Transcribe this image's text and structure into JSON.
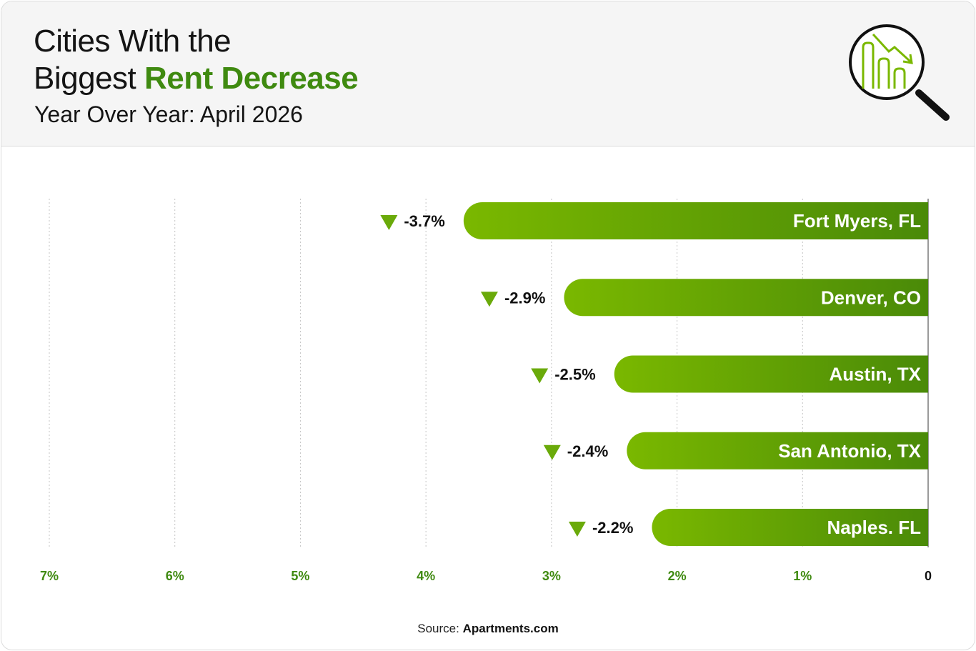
{
  "header": {
    "title_line1": "Cities With the",
    "title_line2_plain": "Biggest ",
    "title_line2_accent": "Rent Decrease",
    "subtitle": "Year Over Year: April 2026",
    "logo_icon": "magnifier-declining-chart-icon"
  },
  "footer": {
    "source_label": "Source: ",
    "source_name": "Apartments.com"
  },
  "colors": {
    "accent": "#3f8a10",
    "bar_light": "#7ab800",
    "bar_dark": "#4a8a08",
    "marker": "#6aaa0a",
    "axis_label": "#3f8a10"
  },
  "chart_data": {
    "type": "bar",
    "orientation": "horizontal",
    "direction": "negative-to-left",
    "categories": [
      "Fort Myers, FL",
      "Denver, CO",
      "Austin, TX",
      "San Antonio, TX",
      "Naples. FL"
    ],
    "values": [
      -3.7,
      -2.9,
      -2.5,
      -2.4,
      -2.2
    ],
    "value_labels": [
      "-3.7%",
      "-2.9%",
      "-2.5%",
      "-2.4%",
      "-2.2%"
    ],
    "x_ticks": [
      {
        "value": 7,
        "label": "7%"
      },
      {
        "value": 6,
        "label": "6%"
      },
      {
        "value": 5,
        "label": "5%"
      },
      {
        "value": 4,
        "label": "4%"
      },
      {
        "value": 3,
        "label": "3%"
      },
      {
        "value": 2,
        "label": "2%"
      },
      {
        "value": 1,
        "label": "1%"
      },
      {
        "value": 0,
        "label": "0"
      }
    ],
    "xlim": [
      0,
      7
    ],
    "grid": "vertical-dotted",
    "title": "",
    "xlabel": "",
    "ylabel": ""
  }
}
